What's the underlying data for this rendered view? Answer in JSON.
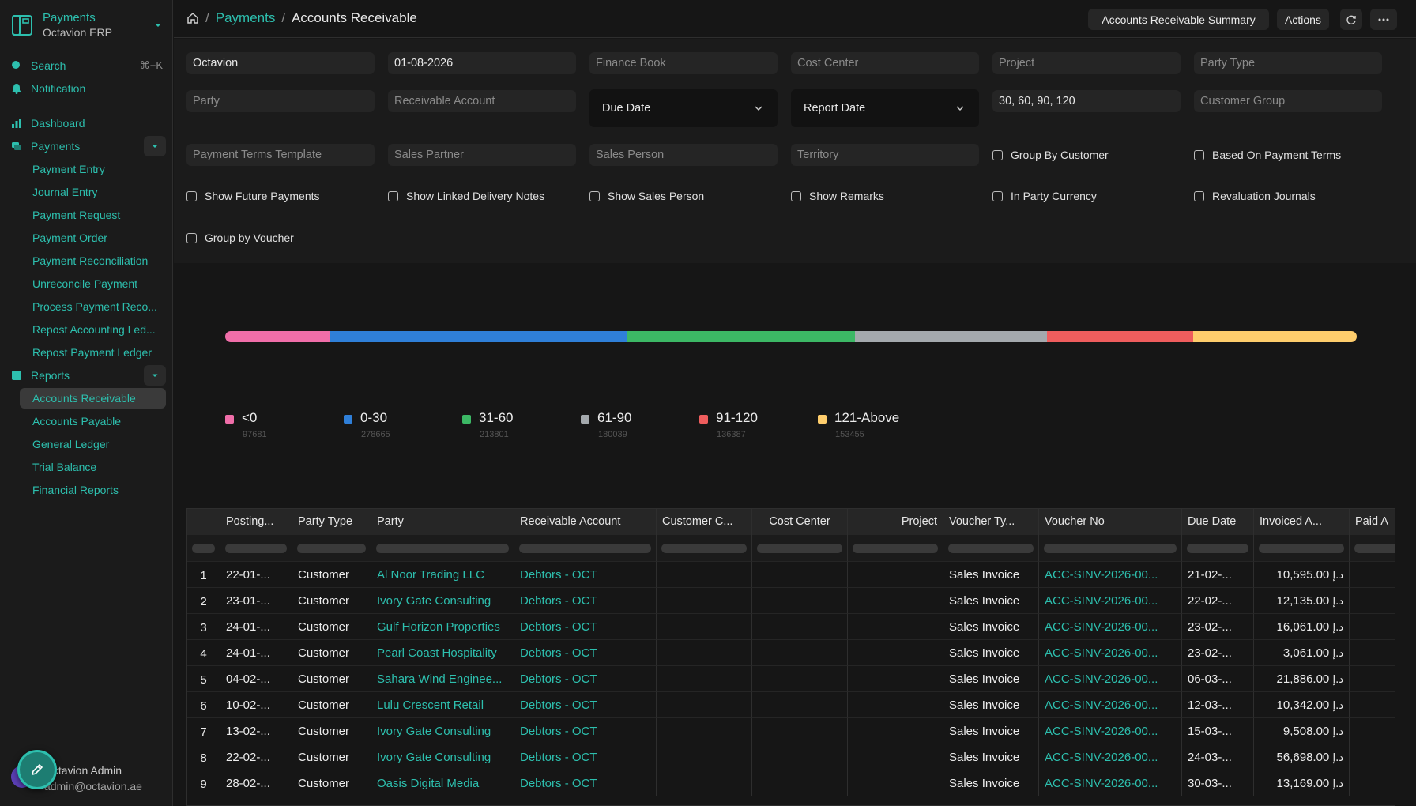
{
  "sidebar": {
    "app_name": "Payments",
    "org_name": "Octavion ERP",
    "search_label": "Search",
    "search_shortcut": "⌘+K",
    "notification_label": "Notification",
    "dashboard_label": "Dashboard",
    "payments_label": "Payments",
    "payments_items": [
      "Payment Entry",
      "Journal Entry",
      "Payment Request",
      "Payment Order",
      "Payment Reconciliation",
      "Unreconcile Payment",
      "Process Payment Reco...",
      "Repost Accounting Led...",
      "Repost Payment Ledger"
    ],
    "reports_label": "Reports",
    "reports_items": [
      "Accounts Receivable",
      "Accounts Payable",
      "General Ledger",
      "Trial Balance",
      "Financial Reports"
    ],
    "user_name": "Octavion Admin",
    "user_email": "admin@octavion.ae"
  },
  "topbar": {
    "crumb_1": "Payments",
    "crumb_2": "Accounts Receivable",
    "summary_button": "Accounts Receivable Summary",
    "actions_button": "Actions"
  },
  "filters": {
    "company": "Octavion",
    "date": "01-08-2026",
    "finance_book_ph": "Finance Book",
    "cost_center_ph": "Cost Center",
    "project_ph": "Project",
    "party_type_ph": "Party Type",
    "party_ph": "Party",
    "receivable_account_ph": "Receivable Account",
    "ageing_based_on": "Due Date",
    "calculate_based_on": "Report Date",
    "range": "30, 60, 90, 120",
    "customer_group_ph": "Customer Group",
    "payment_terms_template_ph": "Payment Terms Template",
    "sales_partner_ph": "Sales Partner",
    "sales_person_ph": "Sales Person",
    "territory_ph": "Territory",
    "checks": {
      "group_by_customer": "Group By Customer",
      "based_on_payment_terms": "Based On Payment Terms",
      "show_future_payments": "Show Future Payments",
      "show_linked_delivery_notes": "Show Linked Delivery Notes",
      "show_sales_person": "Show Sales Person",
      "show_remarks": "Show Remarks",
      "in_party_currency": "In Party Currency",
      "revaluation_journals": "Revaluation Journals",
      "group_by_voucher": "Group by Voucher"
    }
  },
  "chart_data": {
    "type": "bar",
    "categories": [
      "<0",
      "0-30",
      "31-60",
      "61-90",
      "91-120",
      "121-Above"
    ],
    "values": [
      97681,
      278665,
      213801,
      180039,
      136387,
      153455
    ],
    "colors": [
      "#f06ea9",
      "#2f7fd8",
      "#3cb865",
      "#a4a9ad",
      "#ef5d5d",
      "#fecd6c"
    ]
  },
  "table": {
    "columns": [
      "Posting...",
      "Party Type",
      "Party",
      "Receivable Account",
      "Customer C...",
      "Cost Center",
      "Project",
      "Voucher Ty...",
      "Voucher No",
      "Due Date",
      "Invoiced A...",
      "Paid A"
    ],
    "currency_symbol": "د.إ",
    "rows": [
      {
        "n": "1",
        "posting": "22-01-...",
        "party_type": "Customer",
        "party": "Al Noor Trading LLC",
        "account": "Debtors - OCT",
        "vtype": "Sales Invoice",
        "vno": "ACC-SINV-2026-00...",
        "due": "21-02-...",
        "invoiced": "10,595.00"
      },
      {
        "n": "2",
        "posting": "23-01-...",
        "party_type": "Customer",
        "party": "Ivory Gate Consulting",
        "account": "Debtors - OCT",
        "vtype": "Sales Invoice",
        "vno": "ACC-SINV-2026-00...",
        "due": "22-02-...",
        "invoiced": "12,135.00"
      },
      {
        "n": "3",
        "posting": "24-01-...",
        "party_type": "Customer",
        "party": "Gulf Horizon Properties",
        "account": "Debtors - OCT",
        "vtype": "Sales Invoice",
        "vno": "ACC-SINV-2026-00...",
        "due": "23-02-...",
        "invoiced": "16,061.00"
      },
      {
        "n": "4",
        "posting": "24-01-...",
        "party_type": "Customer",
        "party": "Pearl Coast Hospitality",
        "account": "Debtors - OCT",
        "vtype": "Sales Invoice",
        "vno": "ACC-SINV-2026-00...",
        "due": "23-02-...",
        "invoiced": "3,061.00"
      },
      {
        "n": "5",
        "posting": "04-02-...",
        "party_type": "Customer",
        "party": "Sahara Wind Enginee...",
        "account": "Debtors - OCT",
        "vtype": "Sales Invoice",
        "vno": "ACC-SINV-2026-00...",
        "due": "06-03-...",
        "invoiced": "21,886.00"
      },
      {
        "n": "6",
        "posting": "10-02-...",
        "party_type": "Customer",
        "party": "Lulu Crescent Retail",
        "account": "Debtors - OCT",
        "vtype": "Sales Invoice",
        "vno": "ACC-SINV-2026-00...",
        "due": "12-03-...",
        "invoiced": "10,342.00"
      },
      {
        "n": "7",
        "posting": "13-02-...",
        "party_type": "Customer",
        "party": "Ivory Gate Consulting",
        "account": "Debtors - OCT",
        "vtype": "Sales Invoice",
        "vno": "ACC-SINV-2026-00...",
        "due": "15-03-...",
        "invoiced": "9,508.00"
      },
      {
        "n": "8",
        "posting": "22-02-...",
        "party_type": "Customer",
        "party": "Ivory Gate Consulting",
        "account": "Debtors - OCT",
        "vtype": "Sales Invoice",
        "vno": "ACC-SINV-2026-00...",
        "due": "24-03-...",
        "invoiced": "56,698.00"
      },
      {
        "n": "9",
        "posting": "28-02-...",
        "party_type": "Customer",
        "party": "Oasis Digital Media",
        "account": "Debtors - OCT",
        "vtype": "Sales Invoice",
        "vno": "ACC-SINV-2026-00...",
        "due": "30-03-...",
        "invoiced": "13,169.00"
      }
    ]
  }
}
